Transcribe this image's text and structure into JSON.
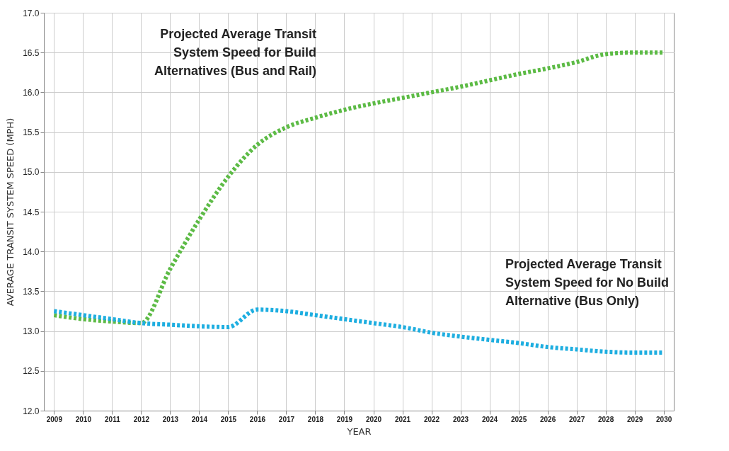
{
  "chart_data": {
    "type": "line",
    "xlabel": "YEAR",
    "ylabel": "AVERAGE TRANSIT SYSTEM SPEED (MPH)",
    "categories": [
      "2009",
      "2010",
      "2011",
      "2012",
      "2013",
      "2014",
      "2015",
      "2016",
      "2017",
      "2018",
      "2019",
      "2020",
      "2021",
      "2022",
      "2023",
      "2024",
      "2025",
      "2026",
      "2027",
      "2028",
      "2029",
      "2030"
    ],
    "series": [
      {
        "name": "Projected Average Transit System Speed for Build Alternatives (Bus and Rail)",
        "color": "#5dbb46",
        "values": [
          13.2,
          13.15,
          13.12,
          13.1,
          13.78,
          14.4,
          14.94,
          15.34,
          15.56,
          15.68,
          15.78,
          15.86,
          15.93,
          16.0,
          16.07,
          16.15,
          16.23,
          16.3,
          16.38,
          16.48,
          16.5,
          16.5
        ]
      },
      {
        "name": "Projected Average Transit System Speed for No Build Alternative (Bus Only)",
        "color": "#1eaee0",
        "values": [
          13.25,
          13.2,
          13.15,
          13.1,
          13.08,
          13.06,
          13.05,
          13.27,
          13.25,
          13.2,
          13.15,
          13.1,
          13.05,
          12.98,
          12.93,
          12.89,
          12.85,
          12.8,
          12.77,
          12.74,
          12.73,
          12.73
        ]
      }
    ],
    "ylim": [
      12.0,
      17.0
    ],
    "yticks": [
      {
        "value": 12,
        "label": "12.0"
      },
      {
        "value": 12.5,
        "label": "12.5"
      },
      {
        "value": 13,
        "label": "13.0"
      },
      {
        "value": 13.5,
        "label": "13.5"
      },
      {
        "value": 14,
        "label": "14.0"
      },
      {
        "value": 14.5,
        "label": "14.5"
      },
      {
        "value": 15,
        "label": "15.0"
      },
      {
        "value": 15.5,
        "label": "15.5"
      },
      {
        "value": 16,
        "label": "16.0"
      },
      {
        "value": 16.5,
        "label": "16.5"
      },
      {
        "value": 17,
        "label": "17.0"
      }
    ],
    "grid": true,
    "marker": "none",
    "line_style": "dotted"
  }
}
